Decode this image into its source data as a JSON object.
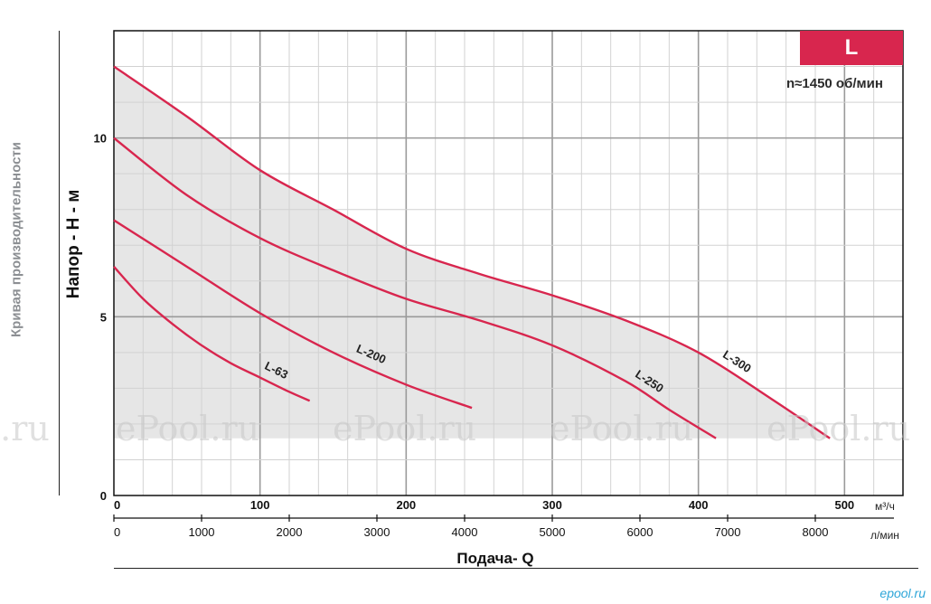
{
  "side_title": "Кривая производительности",
  "badge": "L",
  "speed": "n≈1450 об/мин",
  "watermark": "ePool.ru",
  "watermark_left": "l.ru",
  "brand": "epool.ru",
  "accent_color": "#d8264e",
  "band_color": "#e6e6e6",
  "chart_data": {
    "type": "line",
    "ylabel": "Напор - Н - м",
    "xlabel": "Подача- Q",
    "x_unit": "м³/ч",
    "x2_unit": "л/мин",
    "xlim": [
      0,
      540
    ],
    "ylim": [
      0,
      13
    ],
    "x_ticks": [
      0,
      100,
      200,
      300,
      400,
      500
    ],
    "y_ticks": [
      0,
      5,
      10
    ],
    "x2_ticks": [
      0,
      1000,
      2000,
      3000,
      4000,
      5000,
      6000,
      7000,
      8000
    ],
    "grid": true,
    "series": [
      {
        "name": "L-63",
        "x": [
          0,
          20,
          40,
          60,
          80,
          100,
          120,
          134
        ],
        "y": [
          6.4,
          5.5,
          4.8,
          4.2,
          3.7,
          3.3,
          2.9,
          2.65
        ]
      },
      {
        "name": "L-200",
        "x": [
          0,
          50,
          100,
          150,
          200,
          245
        ],
        "y": [
          7.7,
          6.4,
          5.1,
          4.0,
          3.1,
          2.45
        ]
      },
      {
        "name": "L-250",
        "x": [
          0,
          50,
          100,
          150,
          200,
          250,
          300,
          350,
          380,
          412
        ],
        "y": [
          10.0,
          8.4,
          7.2,
          6.3,
          5.5,
          4.9,
          4.2,
          3.2,
          2.4,
          1.6
        ]
      },
      {
        "name": "L-300",
        "x": [
          0,
          50,
          100,
          150,
          200,
          250,
          300,
          350,
          400,
          450,
          490
        ],
        "y": [
          12.0,
          10.6,
          9.1,
          8.0,
          6.9,
          6.2,
          5.6,
          4.9,
          4.0,
          2.7,
          1.6
        ]
      }
    ]
  }
}
